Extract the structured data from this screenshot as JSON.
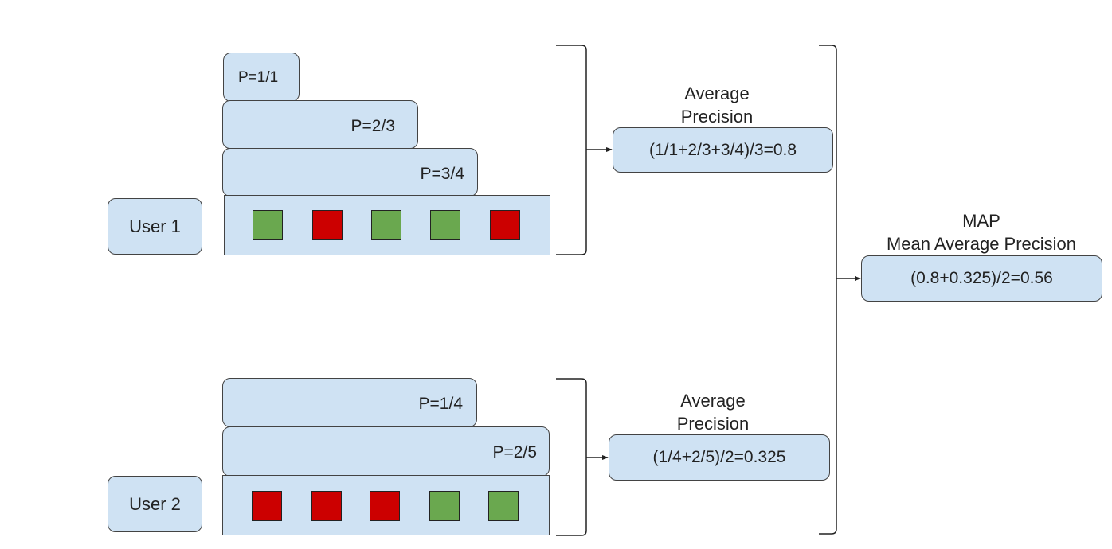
{
  "users": [
    {
      "label": "User 1",
      "precisions": [
        "P=1/1",
        "P=2/3",
        "P=3/4"
      ],
      "items": [
        "relevant",
        "non-relevant",
        "relevant",
        "relevant",
        "non-relevant"
      ],
      "ap_caption": [
        "Average",
        "Precision"
      ],
      "ap_formula": "(1/1+2/3+3/4)/3=0.8"
    },
    {
      "label": "User 2",
      "precisions": [
        "P=1/4",
        "P=2/5"
      ],
      "items": [
        "non-relevant",
        "non-relevant",
        "non-relevant",
        "relevant",
        "relevant"
      ],
      "ap_caption": [
        "Average",
        "Precision"
      ],
      "ap_formula": "(1/4+2/5)/2=0.325"
    }
  ],
  "map": {
    "caption": [
      "MAP",
      "Mean Average Precision"
    ],
    "formula": "(0.8+0.325)/2=0.56"
  },
  "colors": {
    "box_fill": "#cfe2f3",
    "relevant": "#6aa84f",
    "non_relevant": "#cc0000",
    "stroke": "#434343"
  }
}
